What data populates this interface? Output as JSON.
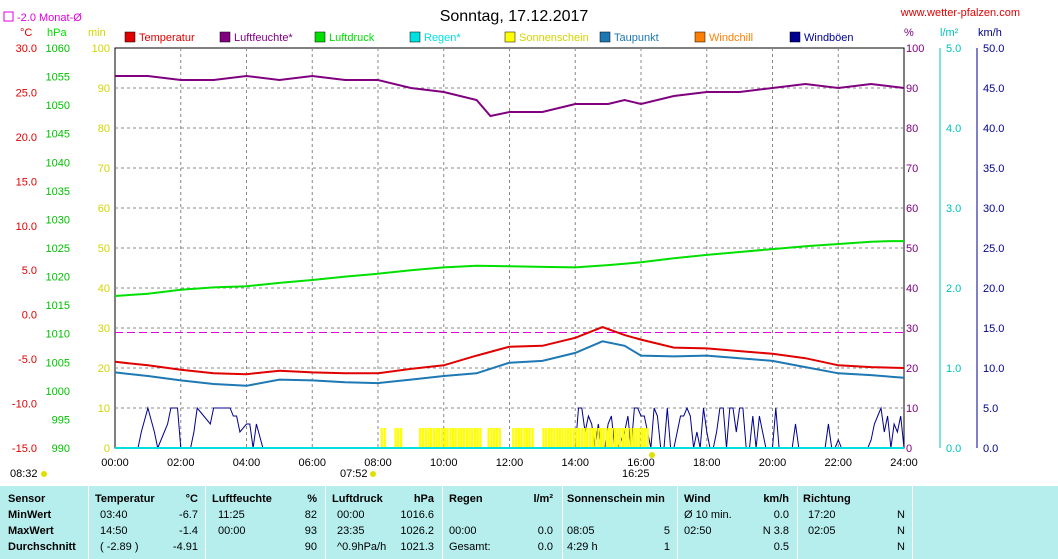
{
  "header": {
    "monthly_avg_label": "-2.0 Monat-Ø",
    "title": "Sonntag, 17.12.2017",
    "site": "www.wetter-pfalzen.com"
  },
  "units": {
    "left_celsius": "°C",
    "left_hpa": "hPa",
    "left_min": "min",
    "right_percent": "%",
    "right_lm2": "l/m²",
    "right_kmh": "km/h"
  },
  "legend": [
    {
      "label": "Temperatur",
      "color": "#e00000"
    },
    {
      "label": "Luftfeuchte*",
      "color": "#800080"
    },
    {
      "label": "Luftdruck",
      "color": "#00e000"
    },
    {
      "label": "Regen*",
      "color": "#00e0e0"
    },
    {
      "label": "Sonnenschein",
      "color": "#ffff00"
    },
    {
      "label": "Taupunkt",
      "color": "#1e78b4"
    },
    {
      "label": "Windchill",
      "color": "#ff8000"
    },
    {
      "label": "Windböen",
      "color": "#000090"
    }
  ],
  "markers": {
    "sunrise_label": "08:32",
    "sun_start_label": "07:52",
    "sun_end_label": "16:25"
  },
  "axes": {
    "x_ticks": [
      "00:00",
      "02:00",
      "04:00",
      "06:00",
      "08:00",
      "10:00",
      "12:00",
      "14:00",
      "16:00",
      "18:00",
      "20:00",
      "22:00",
      "24:00"
    ],
    "temp_ticks": [
      "30.0",
      "25.0",
      "20.0",
      "15.0",
      "10.0",
      "5.0",
      "0.0",
      "-5.0",
      "-10.0",
      "-15.0"
    ],
    "hpa_ticks": [
      "1060",
      "1055",
      "1050",
      "1045",
      "1040",
      "1035",
      "1030",
      "1025",
      "1020",
      "1015",
      "1010",
      "1005",
      "1000",
      "995",
      "990"
    ],
    "min_ticks": [
      "100",
      "90",
      "80",
      "70",
      "60",
      "50",
      "40",
      "30",
      "20",
      "10",
      "0"
    ],
    "pct_ticks": [
      "100",
      "90",
      "80",
      "70",
      "60",
      "50",
      "40",
      "30",
      "20",
      "10",
      "0"
    ],
    "lm2_ticks": [
      "5.0",
      "4.0",
      "3.0",
      "2.0",
      "1.0",
      "0.0"
    ],
    "kmh_ticks": [
      "50.0",
      "45.0",
      "40.0",
      "35.0",
      "30.0",
      "25.0",
      "20.0",
      "15.0",
      "10.0",
      "5.0",
      "0.0"
    ]
  },
  "chart_data": {
    "type": "line",
    "title": "Sonntag, 17.12.2017",
    "x_unit": "hour",
    "xlim": [
      0,
      24
    ],
    "monthly_avg_temp": -2.0,
    "series": [
      {
        "name": "Temperatur",
        "axis": "°C",
        "ylim": [
          -15,
          30
        ],
        "x": [
          0,
          1,
          2,
          3,
          4,
          5,
          6,
          7,
          8,
          9,
          10,
          11,
          12,
          13,
          14,
          14.83,
          15.5,
          16,
          17,
          18,
          19,
          20,
          21,
          22,
          23,
          24
        ],
        "values": [
          -5.3,
          -5.7,
          -6.2,
          -6.6,
          -6.7,
          -6.3,
          -6.5,
          -6.6,
          -6.6,
          -6.1,
          -5.7,
          -4.6,
          -3.6,
          -3.5,
          -2.6,
          -1.4,
          -2.3,
          -2.8,
          -3.7,
          -3.8,
          -4.1,
          -4.4,
          -4.9,
          -5.7,
          -5.9,
          -6.0
        ]
      },
      {
        "name": "Luftfeuchte*",
        "axis": "%",
        "ylim": [
          0,
          100
        ],
        "x": [
          0,
          1,
          2,
          3,
          4,
          5,
          6,
          7,
          8,
          9,
          10,
          11,
          11.42,
          12,
          13,
          14,
          15,
          15.5,
          16,
          17,
          18,
          19,
          20,
          21,
          22,
          23,
          24
        ],
        "values": [
          93,
          93,
          92,
          92,
          93,
          92,
          93,
          92,
          92,
          90,
          89,
          87,
          83,
          84,
          84,
          86,
          86,
          87,
          86,
          88,
          89,
          89,
          90,
          91,
          90,
          91,
          90
        ]
      },
      {
        "name": "Luftdruck",
        "axis": "hPa",
        "ylim": [
          990,
          1060
        ],
        "x": [
          0,
          1,
          2,
          3,
          4,
          5,
          6,
          7,
          8,
          9,
          10,
          11,
          12,
          13,
          14,
          15,
          16,
          17,
          18,
          19,
          20,
          21,
          22,
          23,
          23.58,
          24
        ],
        "values": [
          1016.6,
          1017.0,
          1017.7,
          1018.1,
          1018.3,
          1018.9,
          1019.4,
          1020.0,
          1020.5,
          1021.1,
          1021.6,
          1021.9,
          1021.8,
          1021.7,
          1021.6,
          1022.0,
          1022.5,
          1023.2,
          1023.8,
          1024.3,
          1024.8,
          1025.3,
          1025.7,
          1026.1,
          1026.2,
          1026.2
        ]
      },
      {
        "name": "Taupunkt",
        "axis": "°C",
        "ylim": [
          -15,
          30
        ],
        "x": [
          0,
          1,
          2,
          3,
          4,
          5,
          6,
          7,
          8,
          9,
          10,
          11,
          12,
          13,
          14,
          14.83,
          15.5,
          16,
          17,
          18,
          19,
          20,
          21,
          22,
          23,
          24
        ],
        "values": [
          -6.5,
          -6.9,
          -7.4,
          -7.8,
          -8.0,
          -7.3,
          -7.4,
          -7.6,
          -7.7,
          -7.3,
          -6.9,
          -6.6,
          -5.4,
          -5.2,
          -4.3,
          -3.0,
          -3.5,
          -4.6,
          -4.7,
          -4.6,
          -4.9,
          -5.2,
          -5.9,
          -6.6,
          -6.8,
          -7.1
        ]
      },
      {
        "name": "Windböen",
        "axis": "km/h",
        "ylim": [
          0,
          50
        ],
        "x": [
          0,
          0.7,
          0.8,
          1.0,
          1.2,
          1.3,
          1.5,
          1.6,
          1.7,
          1.8,
          1.9,
          2.0,
          2.3,
          2.4,
          2.5,
          2.9,
          3.0,
          3.1,
          3.2,
          3.3,
          3.4,
          3.5,
          3.6,
          3.7,
          3.8,
          4.0,
          4.1,
          4.2,
          4.3,
          4.5,
          12.0,
          13.0,
          14.0,
          14.1,
          14.2,
          14.3,
          14.4,
          14.5,
          14.6,
          14.7,
          14.8,
          14.9,
          15.0,
          15.1,
          15.2,
          15.3,
          15.5,
          15.6,
          15.7,
          15.8,
          15.9,
          16.0,
          16.1,
          16.2,
          16.3,
          16.4,
          16.5,
          16.6,
          16.7,
          16.8,
          16.9,
          17.0,
          17.1,
          17.2,
          17.3,
          17.4,
          17.5,
          17.6,
          17.7,
          17.8,
          17.9,
          18.0,
          18.1,
          18.2,
          18.3,
          18.4,
          18.5,
          18.6,
          18.7,
          18.8,
          18.9,
          19.0,
          19.1,
          19.2,
          19.3,
          19.4,
          19.5,
          19.6,
          19.7,
          19.8,
          19.9,
          20.0,
          20.1,
          20.2,
          20.3,
          20.4,
          20.5,
          20.6,
          20.7,
          20.8,
          20.9,
          21.0,
          21.1,
          21.2,
          21.3,
          21.4,
          21.5,
          21.6,
          21.7,
          21.8,
          21.9,
          22.0,
          22.1,
          22.2,
          22.3,
          22.4,
          22.5,
          22.6,
          22.7,
          22.8,
          22.9,
          23.0,
          23.1,
          23.2,
          23.3,
          23.4,
          23.5,
          23.6,
          23.7,
          23.8,
          23.9,
          24.0
        ],
        "values": [
          0,
          0,
          2,
          5,
          2,
          0,
          2,
          3,
          5,
          5,
          5,
          0,
          0,
          2,
          5,
          3,
          5,
          5,
          5,
          5,
          5,
          5,
          4,
          4,
          2,
          3,
          3,
          0,
          3,
          0,
          0,
          0,
          0,
          5,
          5,
          2,
          4,
          3,
          0,
          3,
          0,
          0,
          3,
          4,
          0,
          0,
          2,
          4,
          0,
          5,
          5,
          4,
          4,
          2,
          0,
          5,
          4,
          0,
          0,
          5,
          0,
          0,
          2,
          4,
          4,
          5,
          4,
          0,
          2,
          0,
          5,
          2,
          0,
          0,
          2,
          5,
          5,
          0,
          5,
          5,
          2,
          5,
          5,
          0,
          0,
          4,
          0,
          4,
          2,
          0,
          0,
          0,
          5,
          0,
          0,
          0,
          0,
          0,
          3,
          0,
          0,
          0,
          0,
          0,
          0,
          0,
          0,
          0,
          3,
          0,
          0,
          1,
          0,
          0,
          0,
          0,
          0,
          0,
          0,
          0,
          0,
          1,
          3,
          4,
          5,
          2,
          4,
          0,
          3,
          2,
          4,
          0
        ]
      },
      {
        "name": "Sonnenschein",
        "axis": "min",
        "ylim": [
          0,
          100
        ],
        "x": [
          8.08,
          8.17,
          8.5,
          8.58,
          8.67,
          9.25,
          9.33,
          9.42,
          9.5,
          9.58,
          9.67,
          9.75,
          9.83,
          9.92,
          10.0,
          10.08,
          10.17,
          10.25,
          10.33,
          10.42,
          10.5,
          10.58,
          10.67,
          10.75,
          10.83,
          10.92,
          11.0,
          11.08,
          11.33,
          11.42,
          11.5,
          11.58,
          11.67,
          12.08,
          12.17,
          12.25,
          12.33,
          12.42,
          12.5,
          12.58,
          12.67,
          13.0,
          13.08,
          13.17,
          13.25,
          13.33,
          13.42,
          13.5,
          13.58,
          13.67,
          13.75,
          13.83,
          13.92,
          14.0,
          14.08,
          14.17,
          14.25,
          14.33,
          14.42,
          14.5,
          14.58,
          14.67,
          14.75,
          14.83,
          14.92,
          15.0,
          15.08,
          15.17,
          15.25,
          15.33,
          15.42,
          15.5,
          15.58,
          15.67,
          15.75,
          15.83,
          15.92,
          16.0,
          16.08,
          16.17
        ],
        "values": [
          5,
          5,
          5,
          5,
          5,
          5,
          5,
          5,
          5,
          5,
          5,
          5,
          5,
          5,
          5,
          5,
          5,
          5,
          5,
          5,
          5,
          5,
          5,
          5,
          5,
          5,
          5,
          5,
          5,
          5,
          5,
          5,
          5,
          5,
          5,
          5,
          5,
          5,
          5,
          5,
          5,
          5,
          5,
          5,
          5,
          5,
          5,
          5,
          5,
          5,
          5,
          5,
          5,
          5,
          5,
          5,
          5,
          5,
          5,
          5,
          5,
          5,
          5,
          5,
          5,
          5,
          5,
          5,
          5,
          5,
          5,
          5,
          5,
          5,
          5,
          5,
          5,
          5,
          5,
          5
        ]
      },
      {
        "name": "Regen*",
        "axis": "l/m²",
        "ylim": [
          0,
          5
        ],
        "x": [
          0,
          24
        ],
        "values": [
          0,
          0
        ]
      }
    ]
  },
  "table": {
    "headers": [
      "Sensor",
      "Temperatur",
      "°C",
      "Luftfeuchte",
      "%",
      "Luftdruck",
      "hPa",
      "Regen",
      "l/m²",
      "Sonnenschein min",
      "Wind",
      "km/h",
      "Richtung"
    ],
    "rows": [
      {
        "label": "MinWert",
        "temp_time": "03:40",
        "temp_val": "-6.7",
        "hum_time": "11:25",
        "hum_val": "82",
        "pres_time": "00:00",
        "pres_val": "1016.6",
        "rain_time": "",
        "rain_val": "",
        "sun_time": "",
        "sun_val": "",
        "wind_time": "Ø 10 min.",
        "wind_val": "0.0",
        "dir_time": "17:20",
        "dir_val": "N"
      },
      {
        "label": "MaxWert",
        "temp_time": "14:50",
        "temp_val": "-1.4",
        "hum_time": "00:00",
        "hum_val": "93",
        "pres_time": "23:35",
        "pres_val": "1026.2",
        "rain_time": "00:00",
        "rain_val": "0.0",
        "sun_time": "08:05",
        "sun_val": "5",
        "wind_time": "02:50",
        "wind_val": "N 3.8",
        "dir_time": "02:05",
        "dir_val": "N"
      },
      {
        "label": "Durchschnitt",
        "temp_time": "( -2.89 )",
        "temp_val": "-4.91",
        "hum_time": "",
        "hum_val": "90",
        "pres_time": "^0.9hPa/h",
        "pres_val": "1021.3",
        "rain_time": "Gesamt:",
        "rain_val": "0.0",
        "sun_time": "4:29 h",
        "sun_val": "1",
        "wind_time": "",
        "wind_val": "0.5",
        "dir_time": "",
        "dir_val": "N"
      }
    ]
  }
}
